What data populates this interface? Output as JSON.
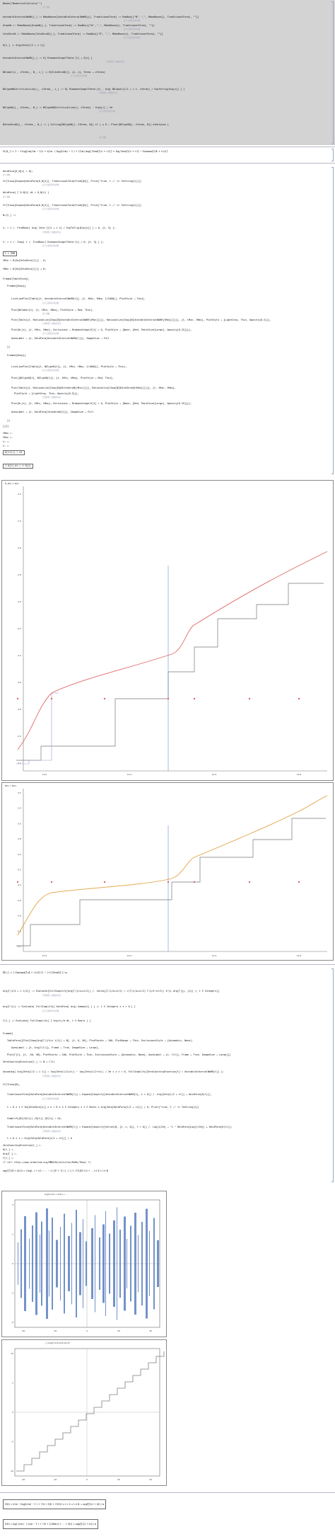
{
  "header": {
    "needs": "Needs[\"NumericalCalculus`\"]"
  },
  "definitions": [
    "UnstableIntervalNmRR[j_] := MakeBoxes[UnstableIntervalNmRR[j], TraditionalForm] := RowBox[{\"N\", \"_\", MakeBoxes[j, TraditionalForm], \"\"}]",
    "AlephN /: MakeBoxes[AlephN[j_], TraditionalForm] := RowBox[{\"ℵ\", \"_\", MakeBoxes[j, TraditionalForm], \"\"}]",
    "IntaZeroN /: MakeBoxes[IntaZeroN[j_], TraditionalForm] := RowBox[{\"Ƶ\", \"_\", MakeBoxes[j, TraditionalForm], \"\"}]",
    "δ[t_] := Arg[Zeta[1/2 + i t]]",
    "UnstableIntervalNmRR[j_] := δ[ RiemannSiegelTheta'[t] + δ[t] ]",
    "NGlobal[i_, xTerms_, N_, i_] := N[IntaZeroN[j], {x, i}, Terms → xTerms]",
    "NGlyphNOOrCriticalLine[j_, xTerms_, i_] := δ[ RiemannSiegelTheta'[t] - Arg[ NGlobal[1/2 + i t, xTerms] / ExpToTrig[Exp[x]] ] ]",
    "NGlyphN[j_, xTerms_, N_] := NGlyphNOOrCriticalLine[j, xTerms] - Sign[j] / 2π",
    "NIntaZeroN[j_, xTerms_, N_] := { Ceiling[NGlyphN[j, xTerms, N]]  if j ≥ 0 ;  Floor[NGlyphN[j, xTerms, N]]  otherwise }"
  ],
  "notes": {
    "short": "这个函数",
    "medium": "定义过滤程序的参数",
    "long": "计算黎曼 ζ 函数的零点"
  },
  "main_formula": "N₀[t_] := 1 − t log(2π)/2π − 1/2 + t/2π · ( log(t/2π) − 1 ) + (1/π) Arg[ Zeta[1/2 + i t] ] + log Zeta[1/2 + i t] − Gamma[1/4 + i t/2]",
  "code_lines": [
    "HoldForm[δ_N[t] = 0];",
    "If[Trunq[Expand[HoldForm[δ_N[t]], TraditionalForm[FreeQ[N]], Print[\"true, t →\" <> ToString[t]]]]",
    "HoldForm[ ∫ δ_N[t] dt = δ_N[t] ]",
    "If[Trunq[Expand[HoldForm[δ_N[t]], TraditionalForm[FreeQ[N]], Print[\"true, t →\" <> ToString[t]]]]",
    "N₀[t_] :=",
    "t₀ = t /. FindRoot[ Arg[ Zeta'[1/2 + i t] / ExpToTrig[Exp[x]] ] = 0, {t, 5} ];",
    "t₁ = t /. Chop[ t /. FindRoot[ RiemannSiegelTheta'[t] = 0, {t, 3} ] ];",
    "tMin = N[Im[ZetaZero[1]]] - 8;",
    "tMax = N[Im[ZetaZero[1]]] + 8;",
    "Framed[TableForm[{",
    "Framed[Show[{",
    "ListLinePlot[Table[{t, UnstableIntervalNmRR[t]}, {t, tMin, tMax, 1/1000}], PlotStyle → Thin],",
    "Plot[NGlobal[t], {t, tMin, tMax}, PlotStyle → Red, Thin],",
    "Plot[Table[{t, Rationalize[Chop[N[UnstableIntervalNmRR[tMin]]]]], Rationalize[Chop[N[UnstableIntervalNmRR[tMax]]]]]}, {t, tMin, tMax}, PlotStyle → {LightGray, Thin, Opacity[0.5]}],",
    "Plot[N₀[t], {t, tMin, tMax}, Exclusions → RiemannSiegelZ[t] = 0, PlotStyle → {None, {Red, PointSize[Large], Opacity[0.25]}}],",
    "AxesLabel → {t, HoldForm[UnstableIntervalNmRR[t]]}, ImageSize → Full",
    "}]",
    "Framed[Show[{",
    "ListLinePlot[Table[{t, NGlyphN[t]}, {t, tMin, tMax, 1/1000}], PlotStyle → Thin],",
    "Plot[{NGlyphN[t], NGlyphN[t]}, {t, tMin, tMax}, PlotStyle → Red, Thin],",
    "Plot[Table[{t, Rationalize[Chop[N[NIntaZeroN[tMin]]]]], Rationalize[Chop[N[NIntaZeroN[tMax]]]]]}, {t, tMin, tMax},",
    "PlotStyle → {LightGray, Thin, Opacity[0.5]}],",
    "Plot[N₀[t], {t, tMin, tMax}, Exclusions → RiemannSiegelZ[t] = 0, PlotStyle → {None, {Red, PointSize[Large], Opacity[0.25]}}],",
    "AxesLabel → {t, HoldForm[IntaZeroN[t]]}, ImageSize → Full",
    "}]",
    "}]]]",
    "tMax =.",
    "tMin =.",
    "t₀ =.",
    "t₁ ="
  ],
  "boxed_values": {
    "t_value": "t = 500",
    "frac_box": "δ[t(t)] / dt",
    "integral_box": "∫ δ[t] dt = t δ[t]"
  },
  "plot1": {
    "axis_label": "N_N(t) ≈ N(t)",
    "x_ticks": [
      "14.0",
      "14.2",
      "14.4",
      "14.6"
    ],
    "y_ticks": [
      "-5.2",
      "-5.0",
      "-4.8",
      "-4.6",
      "-4.4",
      "-4.2",
      "-4.0",
      "-3.8",
      "-3.6",
      "-3.4",
      "-3.2"
    ]
  },
  "plot2": {
    "axis_label": "Ƶ(t) ≈ N(t)",
    "x_ticks": [
      "14.0",
      "14.2",
      "14.4",
      "14.6"
    ],
    "y_ticks": [
      "-5.2",
      "-5.0",
      "-4.8",
      "-4.6",
      "-4.4",
      "-4.2",
      "-4.0",
      "-3.8",
      "-3.6",
      "-3.4",
      "-3.2"
    ]
  },
  "lower_code": [
    "δ[t_] := ( Gamma[1/4 + i t/2] (1 − 2 t) Zeta[t] ) / π",
    "Arg[Γ(1/4 + i t/2)] := Evaluate[FullSimplify[Arg[Γ(1/4+it/2)] /. Solve[{Γ(1/4+it/2) = √(Γ(1/4+it/2) Γ(1/4−it/2)) e^{i Arg[Γ]}}, {t}] /; t ∈ Integers]]",
    "Arg[Γ(t)] := Evaluate[ FullSimplify[ HoldForm[ Arg[ Gamma[t] ] ] /; t ∈ Integers ∧ t > 0 ] ]",
    "Γ[t_] := Evaluate[ FullSimplify[ ∫ Arg(t)/π dt, t ∈ Reals ] ]",
    "Framed[",
    "TableForm[{Plot[Show[Arg[Γ(1/4+i t/2)] + N], {t, 0, 50}, PlotPoints → 100, PlotRange → This, ExclusionsStyle → {Automatic, None},",
    "AxesLabel → {t, Arg[Γ(t)]}, Frame → True, ImageSize → Large],",
    "Plot[Γ[t], {t, -50, 50}, PlotPoints → 100, PlotStyle → Thin, ExclusionsStyle → {Automatic, None}, AxesLabel → {t, Γ(t)}, Frame → True, ImageSize → Large]}]",
    "ZeroCountingFunction[t_] := N + Γ(t)",
    "Assuming[ Arg[Zeta[1/2 + i t]] = log|Zeta(1/2+it)| − log|Zeta(1/2−it)| / 2π i ∧ t > 0, FullSimplify[ZeroCountingFunction[t] = UnstableIntervalNmRR[t]] ];",
    "If[Trunq[N],",
    "TraditionalForm[HoldForm[UnstableIntervalNmRR[t]] = Expand[Simplify[UnstableIntervalNmRR[t], t > 0]] /. Arg[Zeta[1/2 + it]] → HoldForm[δ(t)]],",
    "t = 0 ∧ t ∈ Im[ZetaZero[n]] ∧ n > 0 ∧ n ∈ Integers ∧ t ∈ Reals ∧ Arg[Zeta[HoldForm[1/2 + it]]] / π, Print[\"true, t →\" <> ToString[t]]",
    "Simplify[N[(δ[t])] [δ[t]] [δ[t]] = 0];",
    "TraditionalForm[HoldForm[UnstableIntervalNmRR[t]] = Expand[Simplify[Series[N, {t, ∞, 0}], t > 0]] /. Log[1/2π] → −1 − HoldForm[Log[t/2π]] + HoldForm[δ(t)]];",
    "t ≠ 0 ∧ t = Arg[Zeta[HoldForm[1/2 + it]]] / π",
    "ZeroCountingFunction[t_] =.",
    "δ[t_] =.",
    "Arg[Γ_] =.",
    "Γ[t_] =.",
    "(* ref: http://www.albertum.org/MBM/AS/articles/RnBx/Theo/ *)"
  ],
  "long_formula": "arg(Γ(1/4 + it/2)) = t log(…) + t/2 − … − √( ((t² + 1) ) (…) ) / t · Γ(1/4)² (i t + … )  ∈ ℤ ∧ t ∈ ℝ",
  "bar_plot": {
    "title": "Arg(Γ(1/4 + it/2)) + …",
    "x_ticks": [
      "-40",
      "-20",
      "0",
      "20",
      "40"
    ],
    "y_ticks": [
      "-4",
      "-2",
      "0",
      "2",
      "4"
    ]
  },
  "step_plot": {
    "title": "−∫ Arg(Γ(1/4+it/2))/π dt",
    "x_ticks": [
      "-40",
      "-20",
      "0",
      "20",
      "40"
    ],
    "y_ticks": [
      "-10",
      "-5",
      "0",
      "5",
      "10"
    ]
  },
  "bottom_formulas": [
    "N(t) = t/2π · ( log(t/2π) − 1 ) + 7/8 + S(t) + O(1/t)  ∧  t > 0  ∧  t ∈ ℝ  =  arg(ζ(1/2 + it)) / π",
    "N(t) = log( t/2π ) · ( t/2π − 1 ) + 7/8 + 1/(48π t) + … + S(t)  =  arg(ζ(1/2 + it)) / π"
  ],
  "colors": {
    "gray_block": "#d3d3d3",
    "red_curve": "#e06a6a",
    "orange_curve": "#e0a040",
    "blue_line": "#5577bb",
    "step_gray": "#7f7f7f",
    "bar_blue": "#5a7fc0"
  }
}
